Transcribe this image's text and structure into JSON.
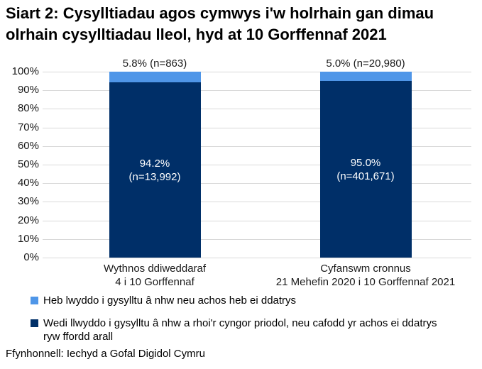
{
  "title": "Siart 2: Cysylltiadau agos cymwys i'w holrhain gan dimau olrhain cysylltiadau lleol, hyd at 10 Gorffennaf 2021",
  "source": "Ffynhonnell: Iechyd a Gofal Digidol Cymru",
  "colors": {
    "light_blue": "#4F96E8",
    "navy": "#002F68",
    "gridline": "#D9D9D9",
    "bar_inner_text": "#FFFFFF"
  },
  "legend": [
    {
      "label": "Heb lwyddo i gysylltu â nhw neu achos heb ei ddatrys",
      "color": "#4F96E8"
    },
    {
      "label": "Wedi llwyddo i gysylltu â nhw a rhoi'r cyngor priodol, neu cafodd yr achos ei ddatrys ryw ffordd arall",
      "color": "#002F68"
    }
  ],
  "chart_data": {
    "type": "bar",
    "stacked": true,
    "grid": true,
    "legend_position": "bottom",
    "ylim": [
      0,
      100
    ],
    "yticks": [
      "100%",
      "90%",
      "80%",
      "70%",
      "60%",
      "50%",
      "40%",
      "30%",
      "20%",
      "10%",
      "0%"
    ],
    "categories": [
      {
        "line1": "Wythnos ddiweddaraf",
        "line2": "4 i 10 Gorffennaf"
      },
      {
        "line1": "Cyfanswm cronnus",
        "line2": "21 Mehefin 2020 i 10 Gorffennaf 2021"
      }
    ],
    "series": [
      {
        "name": "Wedi llwyddo i gysylltu â nhw a rhoi'r cyngor priodol, neu cafodd yr achos ei ddatrys ryw ffordd arall",
        "color_key": "navy",
        "values": [
          94.2,
          95.0
        ],
        "counts": [
          13992,
          401671
        ],
        "inner_labels": [
          [
            "94.2%",
            "(n=13,992)"
          ],
          [
            "95.0%",
            "(n=401,671)"
          ]
        ]
      },
      {
        "name": "Heb lwyddo i gysylltu â nhw neu achos heb ei ddatrys",
        "color_key": "light_blue",
        "values": [
          5.8,
          5.0
        ],
        "counts": [
          863,
          20980
        ],
        "top_labels": [
          "5.8% (n=863)",
          "5.0% (n=20,980)"
        ]
      }
    ]
  }
}
